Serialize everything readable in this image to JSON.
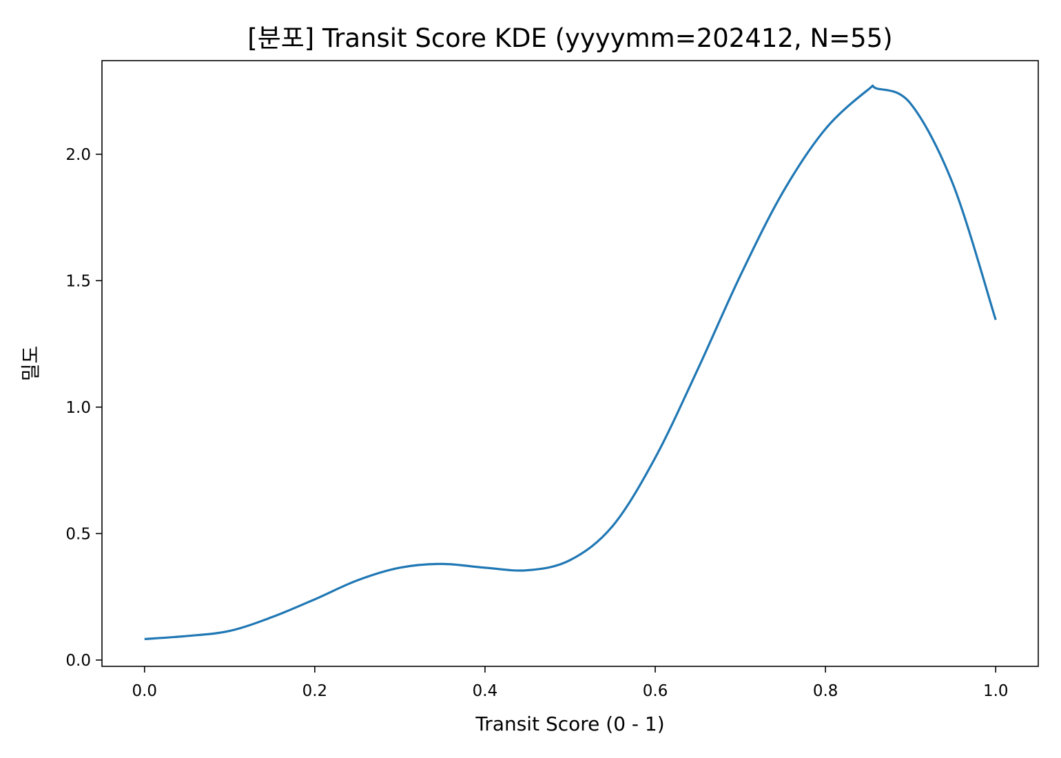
{
  "chart_data": {
    "type": "line",
    "title": "[분포] Transit Score KDE (yyyymm=202412, N=55)",
    "xlabel": "Transit Score (0 - 1)",
    "ylabel": "밀도",
    "xlim": [
      -0.05,
      1.05
    ],
    "ylim": [
      -0.025,
      2.37
    ],
    "xticks": [
      0.0,
      0.2,
      0.4,
      0.6,
      0.8,
      1.0
    ],
    "xtick_labels": [
      "0.0",
      "0.2",
      "0.4",
      "0.6",
      "0.8",
      "1.0"
    ],
    "yticks": [
      0.0,
      0.5,
      1.0,
      1.5,
      2.0
    ],
    "ytick_labels": [
      "0.0",
      "0.5",
      "1.0",
      "1.5",
      "2.0"
    ],
    "grid": false,
    "series": [
      {
        "color": "#1f77b4",
        "x": [
          0.0,
          0.05,
          0.1,
          0.15,
          0.2,
          0.25,
          0.3,
          0.35,
          0.4,
          0.45,
          0.5,
          0.55,
          0.6,
          0.65,
          0.7,
          0.75,
          0.8,
          0.85,
          0.86,
          0.9,
          0.95,
          1.0
        ],
        "y": [
          0.083,
          0.095,
          0.115,
          0.17,
          0.24,
          0.315,
          0.365,
          0.38,
          0.365,
          0.355,
          0.395,
          0.53,
          0.8,
          1.15,
          1.52,
          1.85,
          2.1,
          2.255,
          2.26,
          2.2,
          1.88,
          1.345
        ]
      }
    ]
  }
}
